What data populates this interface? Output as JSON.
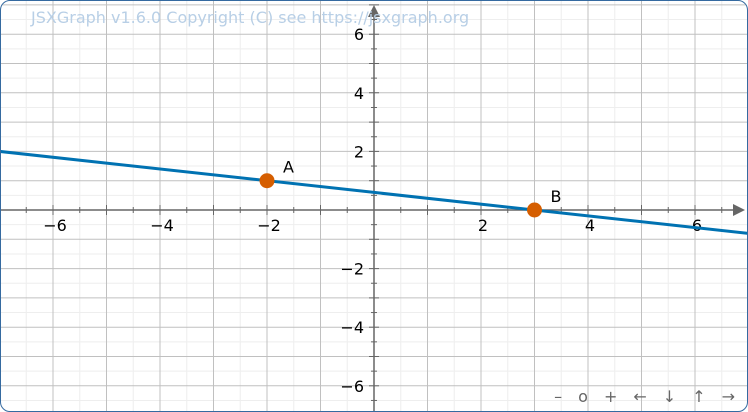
{
  "copyright": "JSXGraph v1.6.0 Copyright (C) see https://jsxgraph.org",
  "navigation": [
    {
      "name": "zoom-out-button",
      "label": "–"
    },
    {
      "name": "zoom-reset-button",
      "label": "o"
    },
    {
      "name": "zoom-in-button",
      "label": "+"
    },
    {
      "name": "pan-left-button",
      "label": "←"
    },
    {
      "name": "pan-down-button",
      "label": "↓"
    },
    {
      "name": "pan-up-button",
      "label": "↑"
    },
    {
      "name": "pan-right-button",
      "label": "→"
    }
  ],
  "colors": {
    "line": "#0072B2",
    "point": "#D55E00",
    "axis": "#666666",
    "grid_major": "#c0c0c0",
    "grid_minor": "#eeeeee"
  },
  "chart_data": {
    "type": "line",
    "xlim": [
      -7,
      7
    ],
    "ylim": [
      -7,
      7
    ],
    "x_ticks": [
      -6,
      -4,
      -2,
      2,
      4,
      6
    ],
    "y_ticks": [
      -6,
      -4,
      -2,
      2,
      4,
      6
    ],
    "grid": true,
    "points": [
      {
        "label": "A",
        "x": -2,
        "y": 1
      },
      {
        "label": "B",
        "x": 3,
        "y": 0
      }
    ]
  }
}
